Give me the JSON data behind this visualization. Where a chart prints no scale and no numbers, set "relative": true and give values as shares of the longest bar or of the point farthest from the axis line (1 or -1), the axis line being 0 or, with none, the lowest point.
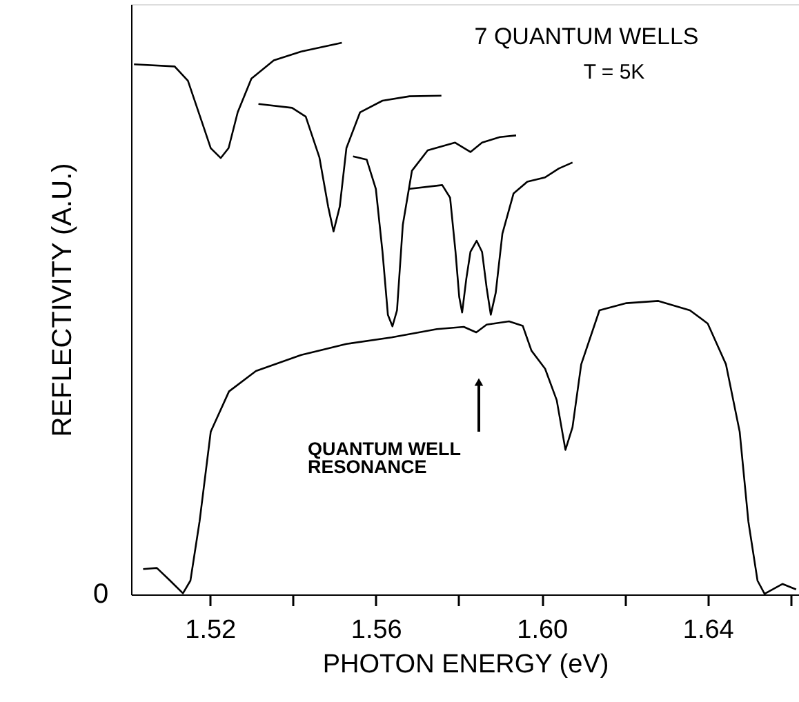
{
  "chart_data": {
    "type": "line",
    "relative": true,
    "xlabel": "PHOTON  ENERGY  (eV)",
    "ylabel": "REFLECTIVITY  (A.U.)",
    "xlim": [
      1.501,
      1.662
    ],
    "xticks": [
      1.52,
      {
        "value": 1.54,
        "label": null
      },
      1.56,
      {
        "value": 1.58,
        "label": null
      },
      "1.60",
      1.64,
      {
        "value": 1.62,
        "label": null
      },
      {
        "value": 1.66,
        "label": null
      }
    ],
    "line_style": "solid",
    "marker": "none",
    "grid": false,
    "annotations": [
      "7 QUANTUM  WELLS",
      "T = 5K",
      "0",
      "QUANTUM  WELL\nRESONANCE"
    ],
    "series": [
      {
        "color": "#000000",
        "x": [
          1.5017,
          1.5115,
          1.5147,
          1.518,
          1.5202,
          1.5226,
          1.5245,
          1.5267,
          1.53,
          1.5354,
          1.542,
          1.5518
        ],
        "values": [
          0.961,
          0.957,
          0.931,
          0.858,
          0.809,
          0.791,
          0.809,
          0.874,
          0.935,
          0.968,
          0.984,
          1.0
        ]
      },
      {
        "color": "#000000",
        "x": [
          1.5317,
          1.5398,
          1.5431,
          1.5464,
          1.5485,
          1.5498,
          1.5513,
          1.5529,
          1.5562,
          1.5616,
          1.5681,
          1.5758
        ],
        "values": [
          0.889,
          0.882,
          0.866,
          0.792,
          0.703,
          0.658,
          0.703,
          0.809,
          0.874,
          0.895,
          0.903,
          0.904
        ]
      },
      {
        "color": "#000000",
        "x": [
          1.5545,
          1.5578,
          1.56,
          1.5616,
          1.5629,
          1.564,
          1.5651,
          1.5665,
          1.5687,
          1.5725,
          1.5791,
          1.5828,
          1.5856,
          1.5899,
          1.5938
        ],
        "values": [
          0.794,
          0.788,
          0.735,
          0.621,
          0.507,
          0.486,
          0.515,
          0.67,
          0.768,
          0.805,
          0.819,
          0.802,
          0.819,
          0.829,
          0.832
        ]
      },
      {
        "color": "#000000",
        "x": [
          1.5679,
          1.576,
          1.5779,
          1.5792,
          1.5801,
          1.5808,
          1.5818,
          1.5828,
          1.5843,
          1.5856,
          1.5867,
          1.5877,
          1.5889,
          1.5905,
          1.5932,
          1.5965,
          1.6008,
          1.6041,
          1.6074
        ],
        "values": [
          0.735,
          0.742,
          0.719,
          0.621,
          0.539,
          0.511,
          0.572,
          0.621,
          0.641,
          0.621,
          0.556,
          0.507,
          0.547,
          0.654,
          0.727,
          0.748,
          0.756,
          0.772,
          0.783
        ]
      },
      {
        "color": "#000000",
        "x": [
          1.5039,
          1.5072,
          1.5104,
          1.5135,
          1.5153,
          1.5175,
          1.5202,
          1.5246,
          1.5311,
          1.542,
          1.5529,
          1.5638,
          1.5747,
          1.5812,
          1.5842,
          1.5867,
          1.5921,
          1.5954,
          1.5975,
          1.6008,
          1.6036,
          1.6057,
          1.6074,
          1.6095,
          1.6139,
          1.6204,
          1.6281,
          1.6357,
          1.64,
          1.6444,
          1.6477,
          1.6498,
          1.652,
          1.6537,
          1.658,
          1.6613
        ],
        "values": [
          0.046,
          0.048,
          0.025,
          0.002,
          0.025,
          0.132,
          0.295,
          0.368,
          0.405,
          0.434,
          0.454,
          0.466,
          0.481,
          0.485,
          0.475,
          0.489,
          0.495,
          0.487,
          0.442,
          0.409,
          0.352,
          0.262,
          0.303,
          0.417,
          0.515,
          0.528,
          0.532,
          0.515,
          0.491,
          0.417,
          0.295,
          0.132,
          0.025,
          0.001,
          0.019,
          0.009
        ]
      }
    ]
  }
}
